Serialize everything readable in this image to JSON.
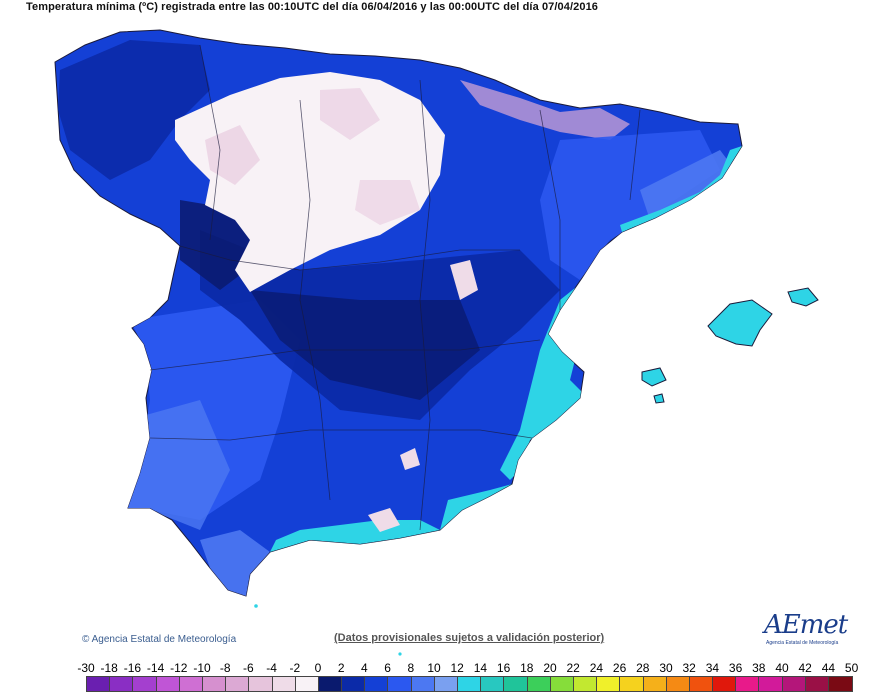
{
  "title": "Temperatura mínima (ºC) registrada entre las 00:10UTC del día 06/04/2016 y las 00:00UTC del día 07/04/2016",
  "copyright": "Agencia Estatal de Meteorología",
  "disclaimer": "(Datos provisionales sujetos a validación posterior)",
  "logo": {
    "text": "AEmet",
    "subtitle": "Agencia Estatal de Meteorología"
  },
  "legend": {
    "labels": [
      "-30",
      "-18",
      "-16",
      "-14",
      "-12",
      "-10",
      "-8",
      "-6",
      "-4",
      "-2",
      "0",
      "2",
      "4",
      "6",
      "8",
      "10",
      "12",
      "14",
      "16",
      "18",
      "20",
      "22",
      "24",
      "26",
      "28",
      "30",
      "32",
      "34",
      "36",
      "38",
      "40",
      "42",
      "44",
      "50"
    ],
    "colors": [
      "#6a1fb0",
      "#8a2ec4",
      "#a43fcf",
      "#c055d6",
      "#cf6fd3",
      "#d690cf",
      "#dca9d4",
      "#e6c4dc",
      "#efdce8",
      "#f8f2f6",
      "#0a1a6e",
      "#0b2aa8",
      "#1440d6",
      "#2b58f0",
      "#4c78f2",
      "#7aa0f0",
      "#2ed4e6",
      "#28c8c0",
      "#20c49a",
      "#3ccf5a",
      "#86dd3a",
      "#c2e830",
      "#f0f02a",
      "#f5d21e",
      "#f5b01a",
      "#f58a14",
      "#f0520e",
      "#e0180c",
      "#e81a8a",
      "#d21a9a",
      "#b4167a",
      "#9a1046",
      "#7a0a14"
    ]
  },
  "map_colors": {
    "deep_blue": "#0a1a6e",
    "blue": "#1440d6",
    "medium_blue": "#2b58f0",
    "light_blue": "#7aa0f0",
    "cyan": "#2ed4e6",
    "frost": "#efdce8",
    "border": "#1a1a3a"
  }
}
